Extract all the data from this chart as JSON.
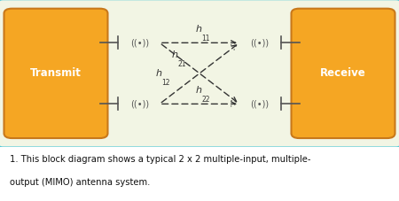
{
  "bg_outer": "#ffffff",
  "bg_inner": "#f2f5e4",
  "border_inner_color": "#4ec8d8",
  "box_color": "#f5a623",
  "box_edge_color": "#c8781a",
  "arrow_color": "#333333",
  "antenna_color": "#555555",
  "label_color": "#333333",
  "transmit_label": "Transmit",
  "receive_label": "Receive",
  "caption_line1": "1. This block diagram shows a typical 2 x 2 multiple-input, multiple-",
  "caption_line2": "output (MIMO) antenna system.",
  "fig_width": 4.5,
  "fig_height": 2.27,
  "dpi": 100
}
